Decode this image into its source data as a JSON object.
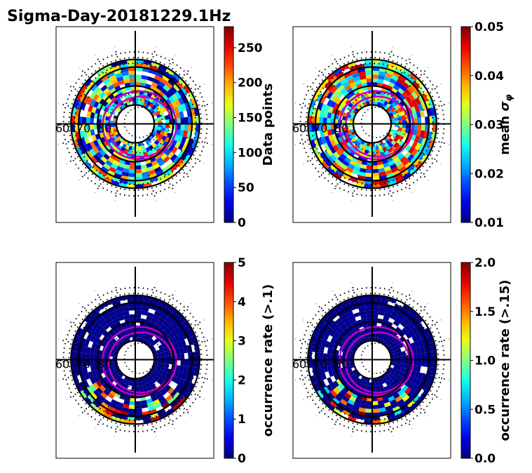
{
  "title": "Sigma-Day-20181229.1Hz",
  "colors": {
    "ring": "#000000",
    "oval": "#c000c0",
    "background_bin": "#00008b"
  },
  "chart_data": [
    {
      "type": "heatmap",
      "projection": "polar",
      "lat_labels": [
        "60",
        "70",
        "80"
      ],
      "lat_rings_deg": [
        60,
        70,
        80
      ],
      "colorbar": {
        "label": "Data points",
        "ticks": [
          "0",
          "50",
          "100",
          "150",
          "200",
          "250"
        ],
        "range": [
          0,
          280
        ],
        "colormap": "jet"
      },
      "value_distribution": {
        "baseline": 80,
        "spread": 1.0
      }
    },
    {
      "type": "heatmap",
      "projection": "polar",
      "lat_labels": [
        "60",
        "70",
        "80"
      ],
      "lat_rings_deg": [
        60,
        70,
        80
      ],
      "colorbar": {
        "label": "mean σφ",
        "label_main": "mean ",
        "label_symbol": "σ",
        "label_sub": "φ",
        "ticks": [
          "0.01",
          "0.02",
          "0.03",
          "0.04",
          "0.05"
        ],
        "range": [
          0.01,
          0.05
        ],
        "colormap": "jet"
      },
      "value_distribution": {
        "baseline": 0.025,
        "spread": 1.0
      }
    },
    {
      "type": "heatmap",
      "projection": "polar",
      "lat_labels": [
        "60",
        "70",
        "80"
      ],
      "lat_rings_deg": [
        60,
        70,
        80
      ],
      "colorbar": {
        "label": "occurrence rate (>.1)",
        "ticks": [
          "0",
          "1",
          "2",
          "3",
          "4",
          "5"
        ],
        "range": [
          0,
          5
        ],
        "colormap": "jet"
      },
      "value_distribution": {
        "baseline": 0.1,
        "spread": 0.15
      }
    },
    {
      "type": "heatmap",
      "projection": "polar",
      "lat_labels": [
        "60",
        "70",
        "80"
      ],
      "lat_rings_deg": [
        60,
        70,
        80
      ],
      "colorbar": {
        "label": "occurrence rate (>.15)",
        "ticks": [
          "0.0",
          "0.5",
          "1.0",
          "1.5",
          "2.0"
        ],
        "range": [
          0,
          2
        ],
        "colormap": "jet"
      },
      "value_distribution": {
        "baseline": 0.05,
        "spread": 0.15
      }
    }
  ]
}
